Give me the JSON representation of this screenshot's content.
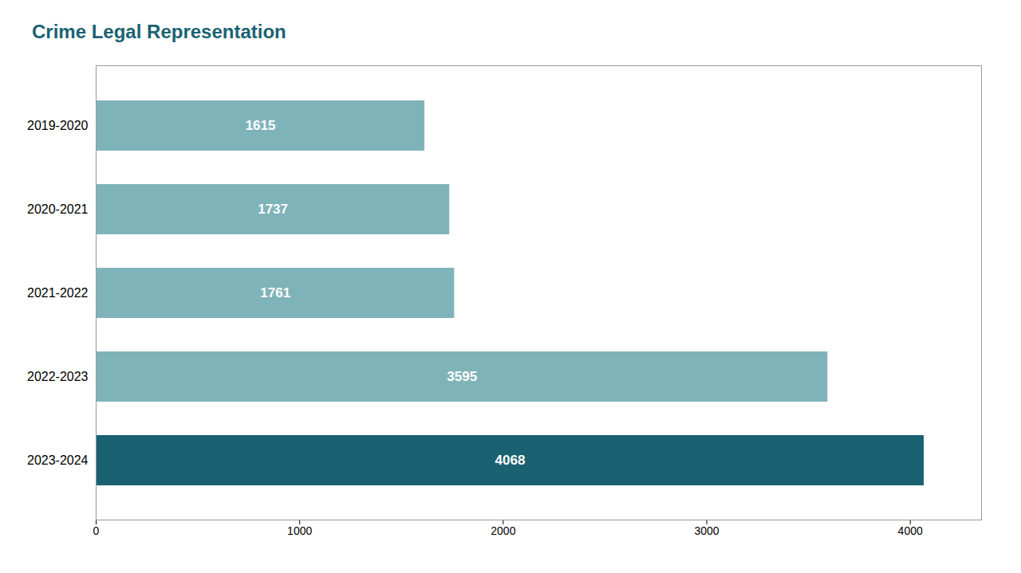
{
  "chart_data": {
    "type": "bar",
    "orientation": "horizontal",
    "title": "Crime Legal Representation",
    "categories": [
      "2019-2020",
      "2020-2021",
      "2021-2022",
      "2022-2023",
      "2023-2024"
    ],
    "values": [
      1615,
      1737,
      1761,
      3595,
      4068
    ],
    "colors": [
      "#7fb3ba",
      "#7fb3ba",
      "#7fb3ba",
      "#7fb3ba",
      "#1a6272"
    ],
    "xlim": [
      0,
      4350
    ],
    "xticks": [
      0,
      1000,
      2000,
      3000,
      4000
    ],
    "grid": false,
    "data_labels": true
  }
}
